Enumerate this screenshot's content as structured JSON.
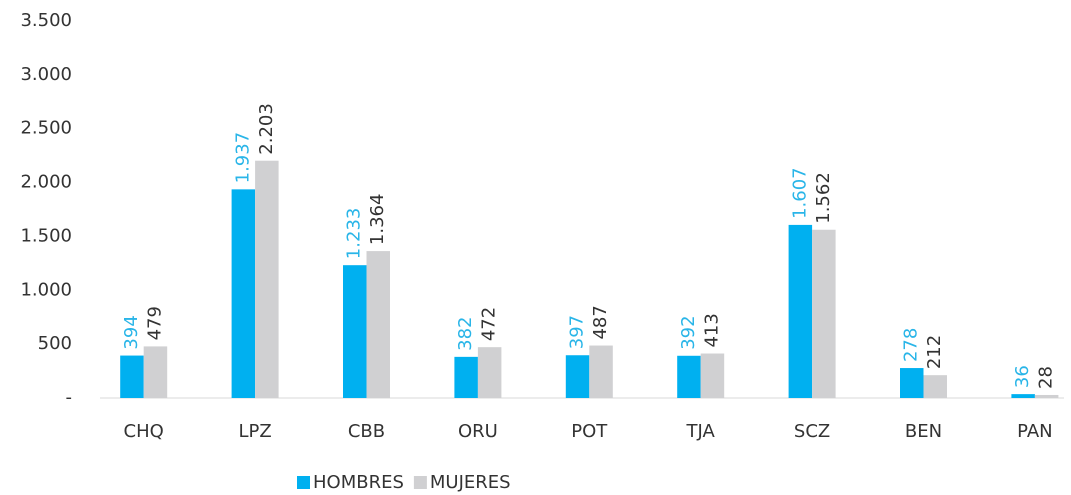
{
  "chart_data": {
    "type": "bar",
    "categories": [
      "CHQ",
      "LPZ",
      "CBB",
      "ORU",
      "POT",
      "TJA",
      "SCZ",
      "BEN",
      "PAN"
    ],
    "series": [
      {
        "name": "HOMBRES",
        "color": "#00b0f0",
        "label_color": "#29b5e8",
        "values": [
          394,
          1937,
          1233,
          382,
          397,
          392,
          1607,
          278,
          36
        ],
        "value_labels": [
          "394",
          "1.937",
          "1.233",
          "382",
          "397",
          "392",
          "1.607",
          "278",
          "36"
        ]
      },
      {
        "name": "MUJERES",
        "color": "#d0d0d2",
        "label_color": "#333333",
        "values": [
          479,
          2203,
          1364,
          472,
          487,
          413,
          1562,
          212,
          28
        ],
        "value_labels": [
          "479",
          "2.203",
          "1.364",
          "472",
          "487",
          "413",
          "1.562",
          "212",
          "28"
        ]
      }
    ],
    "ylim": [
      0,
      3500
    ],
    "yticks": [
      {
        "value": 0,
        "label": "-"
      },
      500,
      {
        "value": 1000,
        "label": "1.000"
      },
      {
        "value": 1500,
        "label": "1.500"
      },
      {
        "value": 2000,
        "label": "2.000"
      },
      {
        "value": 2500,
        "label": "2.500"
      },
      {
        "value": 3000,
        "label": "3.000"
      },
      {
        "value": 3500,
        "label": "3.500"
      }
    ],
    "grid": false,
    "legend": "bottom"
  }
}
